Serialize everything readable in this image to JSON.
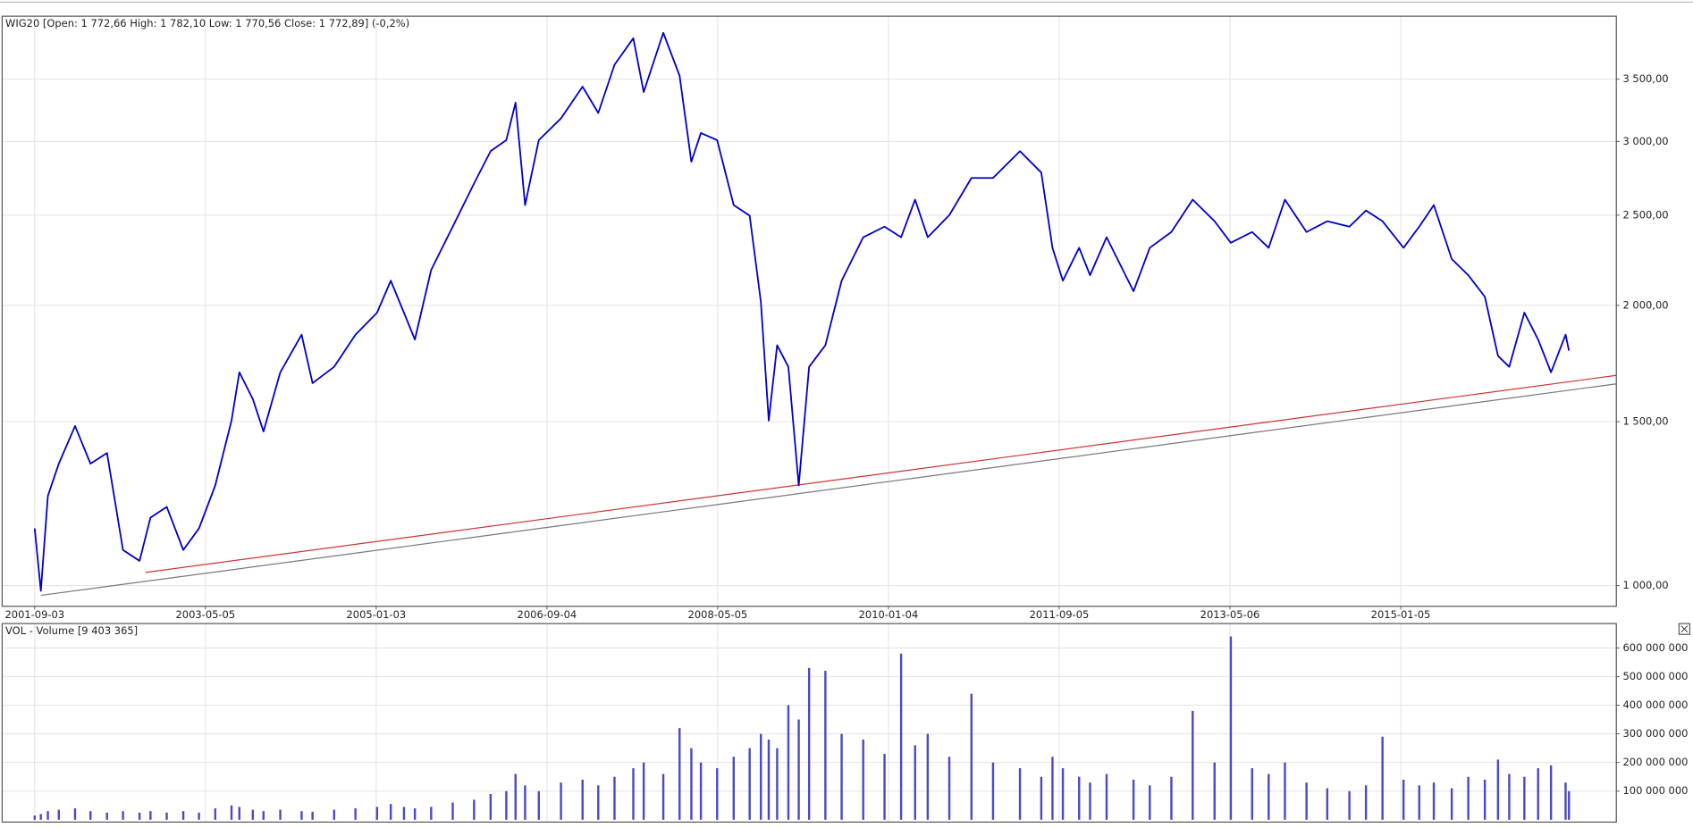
{
  "chart_data": [
    {
      "type": "line",
      "title": "WIG20 [Open: 1 772,66  High: 1 782,10  Low: 1 770,56  Close: 1 772,89] (-0,2%)",
      "x": [
        "2001-09-03",
        "2001-09-25",
        "2001-10-20",
        "2001-11-28",
        "2002-01-25",
        "2002-03-21",
        "2002-05-19",
        "2002-07-15",
        "2002-09-12",
        "2002-10-21",
        "2002-12-18",
        "2003-02-15",
        "2003-04-12",
        "2003-06-09",
        "2003-08-06",
        "2003-09-03",
        "2003-10-21",
        "2003-11-28",
        "2004-01-27",
        "2004-04-12",
        "2004-05-21",
        "2004-08-06",
        "2004-10-21",
        "2005-01-06",
        "2005-02-24",
        "2005-04-12",
        "2005-05-21",
        "2005-07-18",
        "2005-10-03",
        "2005-12-18",
        "2006-02-15",
        "2006-04-12",
        "2006-05-15",
        "2006-06-18",
        "2006-08-06",
        "2006-10-24",
        "2007-01-09",
        "2007-03-06",
        "2007-05-03",
        "2007-07-09",
        "2007-08-15",
        "2007-10-24",
        "2007-12-21",
        "2008-02-01",
        "2008-03-06",
        "2008-05-03",
        "2008-07-01",
        "2008-08-27",
        "2008-10-06",
        "2008-11-03",
        "2008-12-03",
        "2009-01-12",
        "2009-02-18",
        "2009-03-27",
        "2009-05-24",
        "2009-07-21",
        "2009-10-06",
        "2009-12-21",
        "2010-02-18",
        "2010-04-09",
        "2010-05-24",
        "2010-08-09",
        "2010-10-27",
        "2011-01-12",
        "2011-04-18",
        "2011-07-03",
        "2011-08-12",
        "2011-09-18",
        "2011-11-15",
        "2011-12-24",
        "2012-02-21",
        "2012-05-27",
        "2012-07-24",
        "2012-10-09",
        "2012-12-24",
        "2013-03-12",
        "2013-05-09",
        "2013-07-24",
        "2013-09-21",
        "2013-11-18",
        "2014-02-03",
        "2014-04-18",
        "2014-07-06",
        "2014-09-03",
        "2014-11-01",
        "2015-01-15",
        "2015-03-12",
        "2015-05-03",
        "2015-07-06",
        "2015-09-03",
        "2015-11-01",
        "2015-12-18",
        "2016-01-27",
        "2016-03-21",
        "2016-05-09",
        "2016-06-24",
        "2016-08-15",
        "2016-08-27"
      ],
      "values": [
        1152,
        987,
        1248,
        1352,
        1484,
        1352,
        1388,
        1092,
        1063,
        1183,
        1215,
        1092,
        1152,
        1281,
        1504,
        1695,
        1586,
        1464,
        1695,
        1860,
        1650,
        1718,
        1860,
        1964,
        2126,
        1964,
        1838,
        2183,
        2430,
        2704,
        2929,
        3010,
        3302,
        2563,
        3010,
        3176,
        3436,
        3219,
        3627,
        3873,
        3390,
        3925,
        3530,
        2853,
        3063,
        3010,
        2563,
        2497,
        2017,
        1504,
        1812,
        1718,
        1281,
        1718,
        1812,
        2126,
        2367,
        2430,
        2367,
        2598,
        2367,
        2500,
        2741,
        2741,
        2929,
        2778,
        2306,
        2126,
        2306,
        2155,
        2367,
        2071,
        2306,
        2398,
        2598,
        2463,
        2335,
        2398,
        2306,
        2598,
        2398,
        2463,
        2430,
        2529,
        2463,
        2306,
        2430,
        2563,
        2243,
        2155,
        2043,
        1765,
        1718,
        1964,
        1838,
        1695,
        1860,
        1788
      ],
      "color": "#0000cc",
      "trendlines": [
        {
          "color": "#cc3333",
          "x": [
            "2002-10-03",
            "2017-02-12"
          ],
          "values": [
            1033,
            1682
          ]
        },
        {
          "color": "#777777",
          "x": [
            "2001-09-25",
            "2017-02-12"
          ],
          "values": [
            976,
            1647
          ]
        }
      ],
      "xlim": [
        "2001-05-10",
        "2017-02-12"
      ],
      "xticks": [
        "2001-09-03",
        "2003-05-05",
        "2005-01-03",
        "2006-09-04",
        "2008-05-05",
        "2010-01-04",
        "2011-09-05",
        "2013-05-06",
        "2015-01-05"
      ],
      "ylim": [
        950,
        4090
      ],
      "yticks": [
        {
          "value": 1000,
          "label": "1 000,00"
        },
        {
          "value": 1500,
          "label": "1 500,00"
        },
        {
          "value": 2000,
          "label": "2 000,00"
        },
        {
          "value": 2500,
          "label": "2 500,00"
        },
        {
          "value": 3000,
          "label": "3 000,00"
        },
        {
          "value": 3500,
          "label": "3 500,00"
        }
      ],
      "log_scale": true,
      "grid": true
    },
    {
      "type": "bar",
      "title": "VOL - Volume [9 403 365]",
      "x": [
        "2001-09-03",
        "2001-09-25",
        "2001-10-20",
        "2001-11-28",
        "2002-01-25",
        "2002-03-21",
        "2002-05-19",
        "2002-07-15",
        "2002-09-12",
        "2002-10-21",
        "2002-12-18",
        "2003-02-15",
        "2003-04-12",
        "2003-06-09",
        "2003-08-06",
        "2003-09-03",
        "2003-10-21",
        "2003-11-28",
        "2004-01-27",
        "2004-04-12",
        "2004-05-21",
        "2004-08-06",
        "2004-10-21",
        "2005-01-06",
        "2005-02-24",
        "2005-04-12",
        "2005-05-21",
        "2005-07-18",
        "2005-10-03",
        "2005-12-18",
        "2006-02-15",
        "2006-04-12",
        "2006-05-15",
        "2006-06-18",
        "2006-08-06",
        "2006-10-24",
        "2007-01-09",
        "2007-03-06",
        "2007-05-03",
        "2007-07-09",
        "2007-08-15",
        "2007-10-24",
        "2007-12-21",
        "2008-02-01",
        "2008-03-06",
        "2008-05-03",
        "2008-07-01",
        "2008-08-27",
        "2008-10-06",
        "2008-11-03",
        "2008-12-03",
        "2009-01-12",
        "2009-02-18",
        "2009-03-27",
        "2009-05-24",
        "2009-07-21",
        "2009-10-06",
        "2009-12-21",
        "2010-02-18",
        "2010-04-09",
        "2010-05-24",
        "2010-08-09",
        "2010-10-27",
        "2011-01-12",
        "2011-04-18",
        "2011-07-03",
        "2011-08-12",
        "2011-09-18",
        "2011-11-15",
        "2011-12-24",
        "2012-02-21",
        "2012-05-27",
        "2012-07-24",
        "2012-10-09",
        "2012-12-24",
        "2013-03-12",
        "2013-05-09",
        "2013-07-24",
        "2013-09-21",
        "2013-11-18",
        "2014-02-03",
        "2014-04-18",
        "2014-07-06",
        "2014-09-03",
        "2014-11-01",
        "2015-01-15",
        "2015-03-12",
        "2015-05-03",
        "2015-07-06",
        "2015-09-03",
        "2015-11-01",
        "2015-12-18",
        "2016-01-27",
        "2016-03-21",
        "2016-05-09",
        "2016-06-24",
        "2016-08-15",
        "2016-08-27"
      ],
      "values": [
        15000000,
        20000000,
        30000000,
        35000000,
        40000000,
        30000000,
        25000000,
        30000000,
        25000000,
        30000000,
        25000000,
        30000000,
        25000000,
        40000000,
        50000000,
        45000000,
        35000000,
        30000000,
        35000000,
        30000000,
        28000000,
        35000000,
        40000000,
        45000000,
        55000000,
        45000000,
        40000000,
        45000000,
        60000000,
        70000000,
        90000000,
        100000000,
        160000000,
        120000000,
        100000000,
        130000000,
        140000000,
        120000000,
        150000000,
        180000000,
        200000000,
        160000000,
        320000000,
        250000000,
        200000000,
        180000000,
        220000000,
        250000000,
        300000000,
        280000000,
        250000000,
        400000000,
        350000000,
        530000000,
        520000000,
        300000000,
        280000000,
        230000000,
        580000000,
        260000000,
        300000000,
        220000000,
        440000000,
        200000000,
        180000000,
        150000000,
        220000000,
        180000000,
        150000000,
        130000000,
        160000000,
        140000000,
        120000000,
        150000000,
        380000000,
        200000000,
        640000000,
        180000000,
        160000000,
        200000000,
        130000000,
        110000000,
        100000000,
        120000000,
        290000000,
        140000000,
        120000000,
        130000000,
        110000000,
        150000000,
        140000000,
        210000000,
        160000000,
        150000000,
        180000000,
        190000000,
        130000000,
        100000000
      ],
      "color": "#4a4ac8",
      "xlim": [
        "2001-05-10",
        "2017-02-12"
      ],
      "ylim": [
        -8000000,
        685000000
      ],
      "yticks": [
        {
          "value": 100000000,
          "label": "100 000 000"
        },
        {
          "value": 200000000,
          "label": "200 000 000"
        },
        {
          "value": 300000000,
          "label": "300 000 000"
        },
        {
          "value": 400000000,
          "label": "400 000 000"
        },
        {
          "value": 500000000,
          "label": "500 000 000"
        },
        {
          "value": 600000000,
          "label": "600 000 000"
        }
      ],
      "grid": true
    }
  ]
}
